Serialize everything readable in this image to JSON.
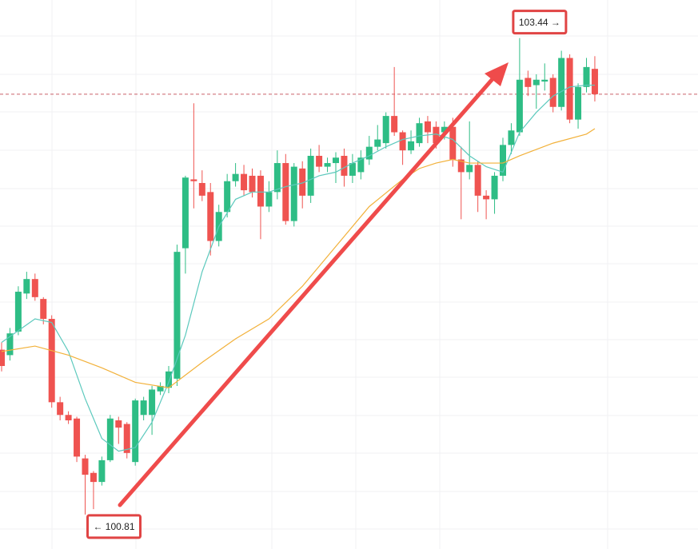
{
  "chart_data": {
    "type": "candlestick",
    "up_color": "#2ebd85",
    "down_color": "#ef5350",
    "ylim": [
      100.62,
      103.65
    ],
    "open": [
      101.72,
      101.69,
      101.82,
      102.03,
      102.11,
      102.0,
      101.89,
      101.43,
      101.36,
      101.34,
      101.12,
      101.04,
      100.99,
      101.11,
      101.33,
      101.31,
      101.1,
      101.36,
      101.36,
      101.49,
      101.51,
      101.56,
      102.28,
      102.66,
      102.64,
      102.59,
      102.32,
      102.48,
      102.65,
      102.69,
      102.68,
      102.68,
      102.51,
      102.59,
      102.75,
      102.43,
      102.72,
      102.57,
      102.79,
      102.73,
      102.75,
      102.79,
      102.68,
      102.7,
      102.77,
      102.84,
      102.86,
      103.01,
      102.92,
      102.82,
      102.86,
      102.98,
      102.95,
      102.92,
      102.95,
      102.77,
      102.7,
      102.74,
      102.57,
      102.55,
      102.68,
      102.85,
      102.92,
      103.22,
      103.18,
      103.2,
      103.22,
      103.06,
      103.33,
      102.99,
      103.17,
      103.27
    ],
    "high": [
      101.76,
      101.84,
      102.07,
      102.15,
      102.14,
      102.01,
      101.91,
      101.46,
      101.38,
      101.35,
      101.14,
      101.05,
      101.13,
      101.36,
      101.35,
      101.32,
      101.45,
      101.46,
      101.52,
      101.54,
      101.63,
      102.3,
      102.68,
      103.08,
      102.71,
      102.64,
      102.52,
      102.69,
      102.75,
      102.74,
      102.72,
      102.71,
      102.65,
      102.82,
      102.8,
      102.75,
      102.76,
      102.83,
      102.85,
      102.78,
      102.81,
      102.83,
      102.8,
      102.82,
      102.9,
      102.96,
      103.03,
      103.28,
      102.93,
      102.93,
      103.0,
      103.01,
      102.98,
      102.98,
      103.0,
      102.84,
      102.98,
      102.76,
      102.6,
      102.7,
      102.89,
      102.97,
      103.44,
      103.26,
      103.24,
      103.3,
      103.24,
      103.37,
      103.35,
      103.19,
      103.33,
      103.34
    ],
    "low": [
      101.6,
      101.66,
      101.8,
      102.0,
      101.99,
      101.86,
      101.4,
      101.33,
      101.31,
      101.1,
      100.81,
      100.84,
      100.97,
      101.1,
      101.2,
      101.12,
      101.08,
      101.33,
      101.25,
      101.47,
      101.48,
      101.52,
      102.14,
      102.5,
      102.54,
      102.24,
      102.29,
      102.45,
      102.62,
      102.57,
      102.56,
      102.33,
      102.48,
      102.55,
      102.41,
      102.4,
      102.5,
      102.53,
      102.7,
      102.7,
      102.64,
      102.62,
      102.64,
      102.66,
      102.74,
      102.82,
      102.83,
      102.9,
      102.74,
      102.8,
      102.84,
      102.86,
      102.83,
      102.88,
      102.73,
      102.44,
      102.66,
      102.48,
      102.44,
      102.47,
      102.65,
      102.8,
      102.9,
      103.12,
      103.05,
      103.15,
      103.03,
      103.04,
      102.97,
      102.94,
      103.14,
      103.09
    ],
    "close": [
      101.63,
      101.81,
      102.04,
      102.11,
      102.01,
      101.89,
      101.43,
      101.36,
      101.33,
      101.13,
      101.03,
      100.99,
      101.11,
      101.34,
      101.29,
      101.15,
      101.44,
      101.44,
      101.5,
      101.52,
      101.6,
      102.26,
      102.67,
      102.65,
      102.57,
      102.32,
      102.48,
      102.65,
      102.69,
      102.6,
      102.59,
      102.51,
      102.59,
      102.75,
      102.43,
      102.73,
      102.57,
      102.79,
      102.73,
      102.75,
      102.78,
      102.68,
      102.75,
      102.78,
      102.84,
      102.88,
      103.01,
      102.92,
      102.82,
      102.87,
      102.97,
      102.92,
      102.86,
      102.95,
      102.77,
      102.7,
      102.74,
      102.57,
      102.55,
      102.68,
      102.85,
      102.93,
      103.21,
      103.17,
      103.21,
      103.21,
      103.06,
      103.33,
      102.99,
      103.17,
      103.28,
      103.13
    ],
    "lines": [
      {
        "color": "#5cc9bd",
        "x": [
          0,
          4,
          6,
          8,
          10,
          12,
          14,
          16,
          18,
          20,
          22,
          24,
          26,
          28,
          30,
          32,
          34,
          36,
          38,
          40,
          42,
          44,
          46,
          48,
          50,
          52,
          54,
          56,
          58,
          60,
          62,
          64,
          66,
          68,
          70,
          71
        ],
        "values": [
          101.76,
          101.89,
          101.87,
          101.71,
          101.45,
          101.23,
          101.16,
          101.18,
          101.32,
          101.54,
          101.8,
          102.15,
          102.4,
          102.55,
          102.59,
          102.59,
          102.62,
          102.64,
          102.68,
          102.7,
          102.75,
          102.79,
          102.84,
          102.88,
          102.9,
          102.91,
          102.88,
          102.79,
          102.73,
          102.7,
          102.92,
          103.03,
          103.12,
          103.17,
          103.18,
          103.18
        ]
      },
      {
        "color": "#f2b13a",
        "x": [
          0,
          4,
          8,
          12,
          16,
          20,
          24,
          28,
          32,
          36,
          40,
          44,
          48,
          50,
          52,
          54,
          56,
          60,
          62,
          66,
          70,
          71
        ],
        "values": [
          101.71,
          101.74,
          101.69,
          101.62,
          101.54,
          101.51,
          101.65,
          101.78,
          101.89,
          102.07,
          102.29,
          102.51,
          102.66,
          102.72,
          102.75,
          102.77,
          102.75,
          102.75,
          102.79,
          102.86,
          102.91,
          102.94
        ]
      }
    ],
    "price_line": 103.13,
    "annotations": [
      {
        "value": 103.44,
        "label": "103.44 →"
      },
      {
        "value": 100.81,
        "label": "← 100.81"
      }
    ]
  }
}
